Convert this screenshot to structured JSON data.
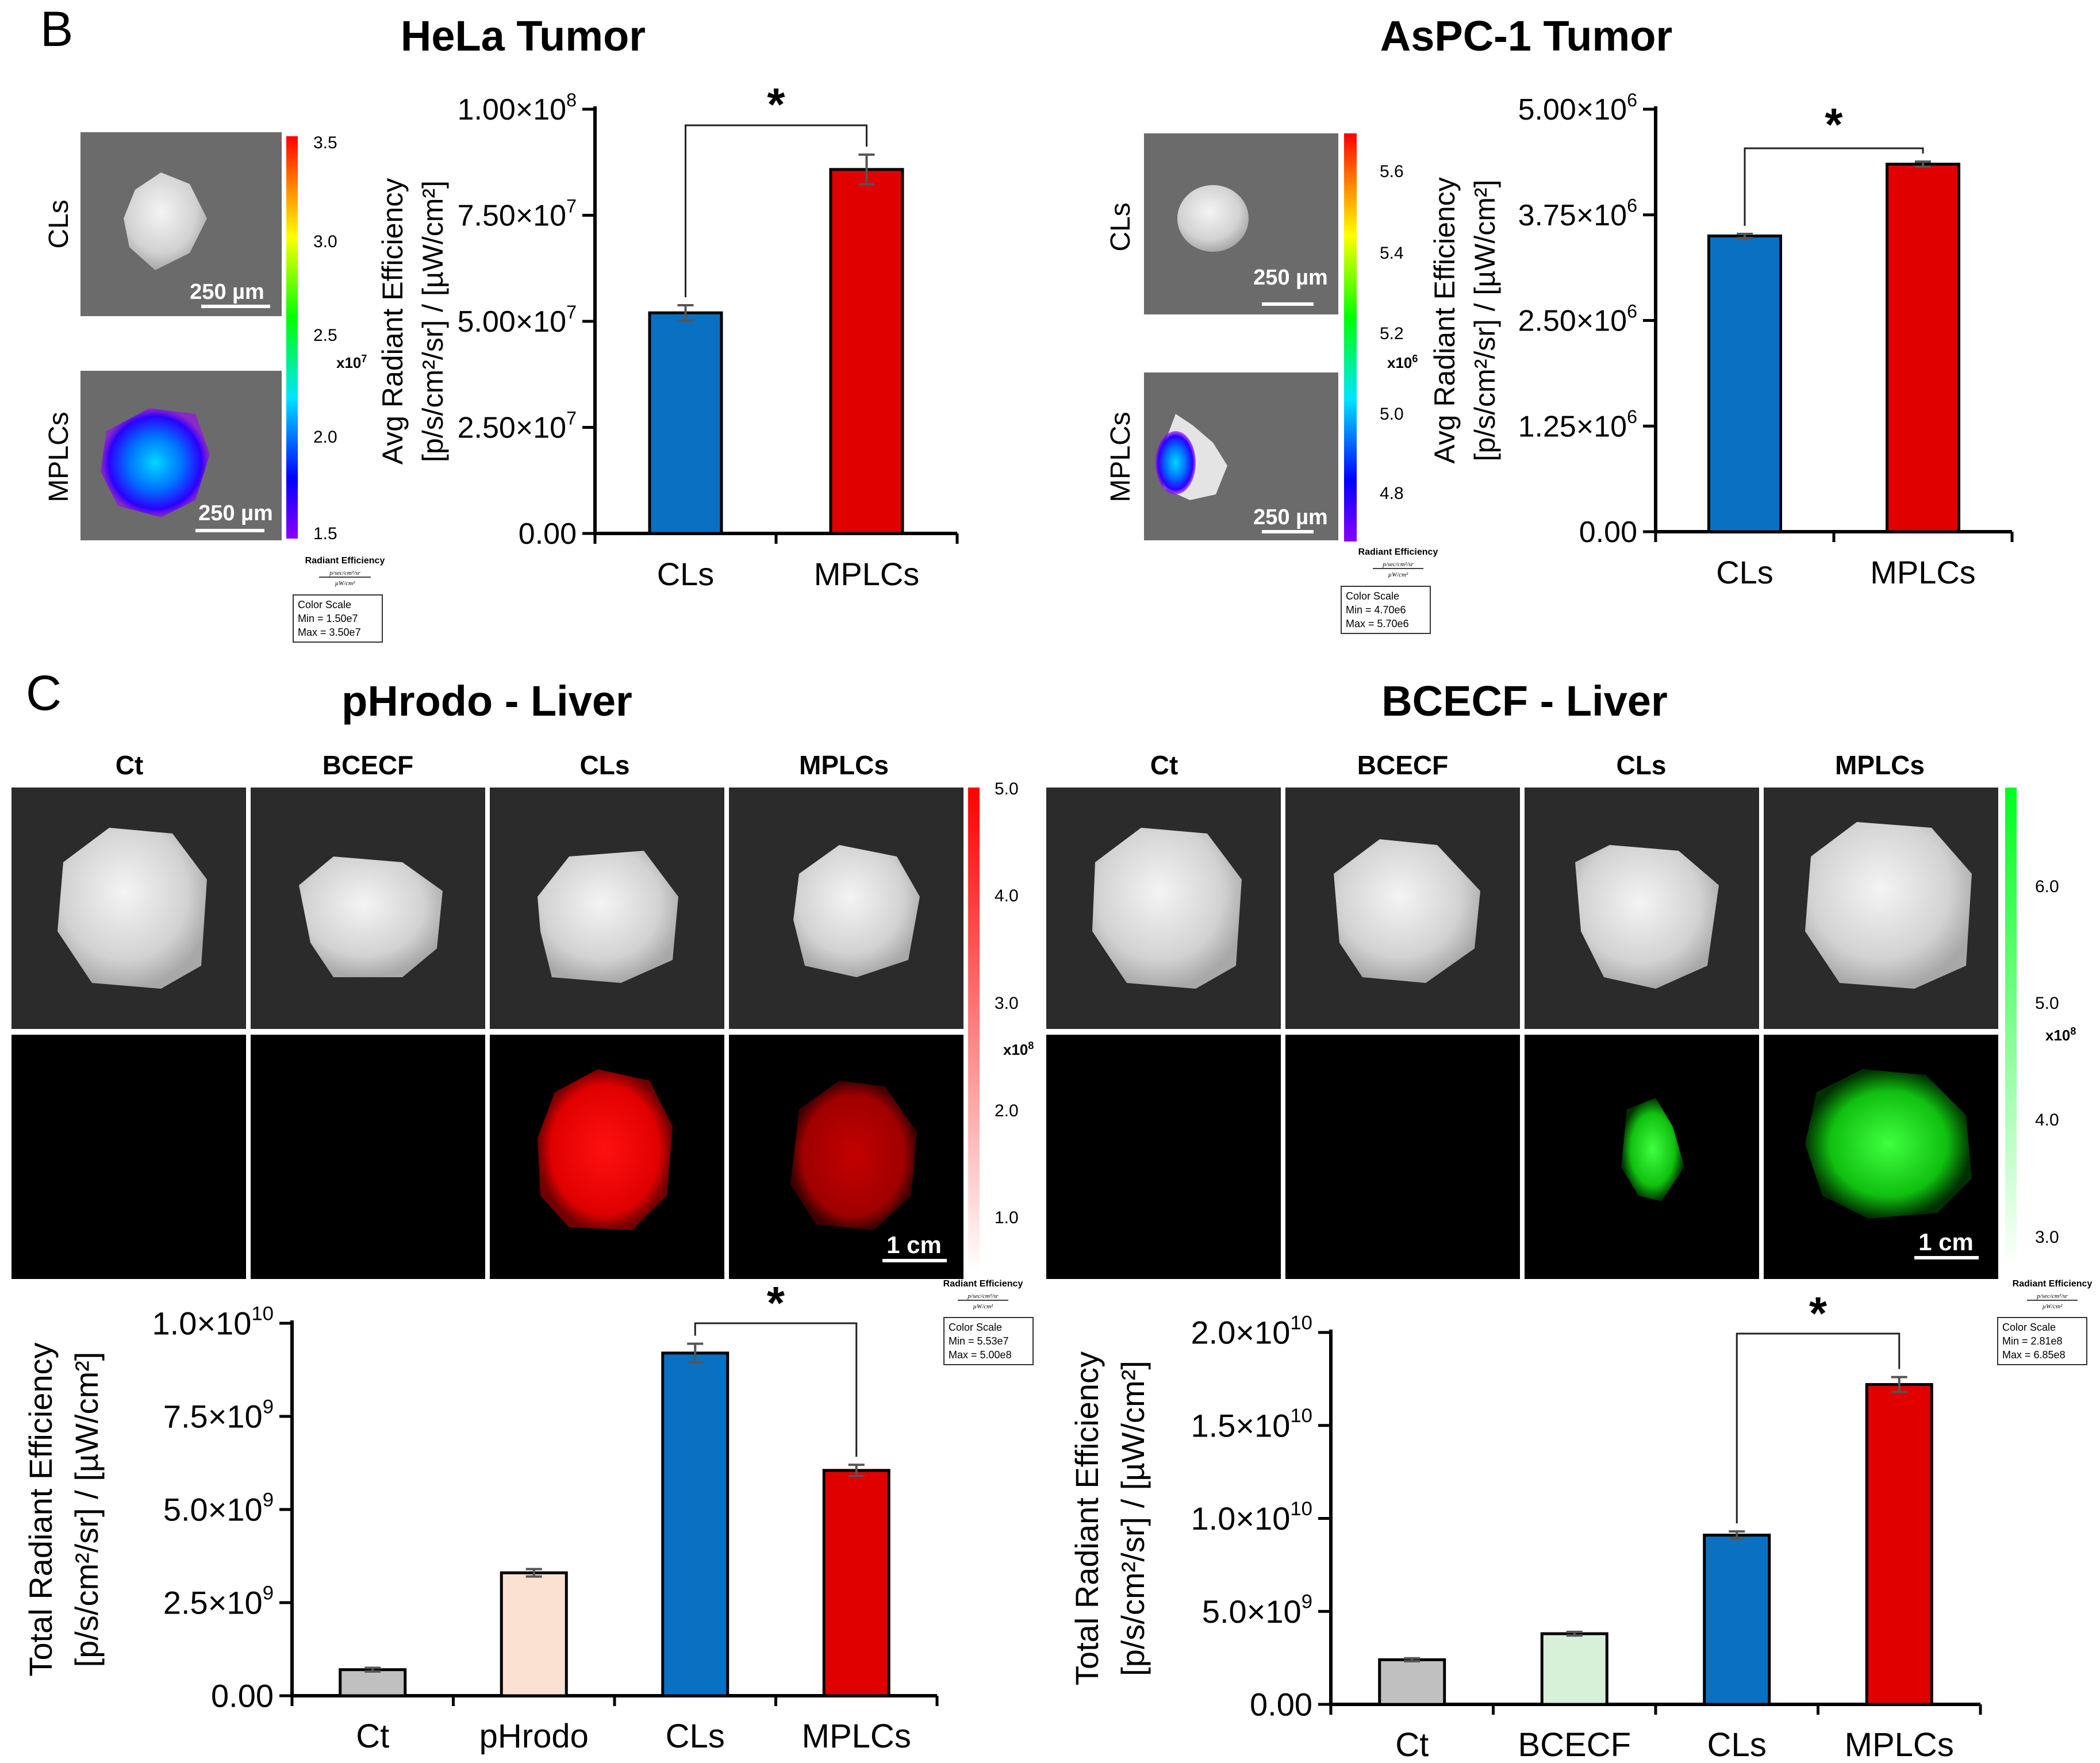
{
  "panels": {
    "B": {
      "letter": "B"
    },
    "C": {
      "letter": "C"
    }
  },
  "images": {
    "hela": {
      "title": "HeLa Tumor",
      "rows": [
        "CLs",
        "MPLCs"
      ],
      "scalebar": "250 µm",
      "colorbar": {
        "ticks": [
          "3.5",
          "3.0",
          "2.5",
          "2.0",
          "1.5"
        ],
        "exponent": "x10",
        "exponent_sup": "7",
        "caption": "Radiant Efficiency",
        "units_num": "p/sec/cm²/sr",
        "units_den": "µW/cm²",
        "box": [
          "Color Scale",
          "Min = 1.50e7",
          "Max = 3.50e7"
        ]
      }
    },
    "aspc": {
      "title": "AsPC-1 Tumor",
      "rows": [
        "CLs",
        "MPLCs"
      ],
      "scalebar": "250 µm",
      "colorbar": {
        "ticks": [
          "5.6",
          "5.4",
          "5.2",
          "5.0",
          "4.8"
        ],
        "exponent": "x10",
        "exponent_sup": "6",
        "caption": "Radiant Efficiency",
        "units_num": "p/sec/cm²/sr",
        "units_den": "µW/cm²",
        "box": [
          "Color Scale",
          "Min = 4.70e6",
          "Max = 5.70e6"
        ]
      }
    },
    "phrodo_liver": {
      "title": "pHrodo - Liver",
      "columns": [
        "Ct",
        "BCECF",
        "CLs",
        "MPLCs"
      ],
      "scalebar": "1 cm",
      "colorbar": {
        "ticks": [
          "5.0",
          "4.0",
          "3.0",
          "2.0",
          "1.0"
        ],
        "exponent": "x10",
        "exponent_sup": "8",
        "caption": "Radiant Efficiency",
        "units_num": "p/sec/cm²/sr",
        "units_den": "µW/cm²",
        "box": [
          "Color Scale",
          "Min = 5.53e7",
          "Max = 5.00e8"
        ]
      }
    },
    "bcecf_liver": {
      "title": "BCECF - Liver",
      "columns": [
        "Ct",
        "BCECF",
        "CLs",
        "MPLCs"
      ],
      "scalebar": "1 cm",
      "colorbar": {
        "ticks": [
          "6.0",
          "5.0",
          "4.0",
          "3.0"
        ],
        "exponent": "x10",
        "exponent_sup": "8",
        "caption": "Radiant Efficiency",
        "units_num": "p/sec/cm²/sr",
        "units_den": "µW/cm²",
        "box": [
          "Color Scale",
          "Min = 2.81e8",
          "Max = 6.85e8"
        ]
      }
    }
  },
  "chart_data": [
    {
      "id": "hela",
      "type": "bar",
      "categories": [
        "CLs",
        "MPLCs"
      ],
      "values": [
        52000000,
        85800000
      ],
      "errors": [
        1800000,
        3500000
      ],
      "colors": [
        "#0a70c2",
        "#e00000"
      ],
      "ylabel_line1": "Avg Radiant Efficiency",
      "ylabel_line2": "[p/s/cm²/sr] / [µW/cm²]",
      "ylim": [
        0,
        100000000
      ],
      "ticks": [
        0,
        25000000,
        50000000,
        75000000,
        100000000
      ],
      "tick_labels": [
        [
          "0.00",
          ""
        ],
        [
          "2.50×10",
          "7"
        ],
        [
          "5.00×10",
          "7"
        ],
        [
          "7.50×10",
          "7"
        ],
        [
          "1.00×10",
          "8"
        ]
      ],
      "significance": {
        "pair": [
          0,
          1
        ],
        "label": "*"
      }
    },
    {
      "id": "aspc",
      "type": "bar",
      "categories": [
        "CLs",
        "MPLCs"
      ],
      "values": [
        3500000,
        4350000
      ],
      "errors": [
        25000,
        30000
      ],
      "colors": [
        "#0a70c2",
        "#e00000"
      ],
      "ylabel_line1": "Avg Radiant Efficiency",
      "ylabel_line2": "[p/s/cm²/sr] / [µW/cm²]",
      "ylim": [
        0,
        5000000
      ],
      "ticks": [
        0,
        1250000,
        2500000,
        3750000,
        5000000
      ],
      "tick_labels": [
        [
          "0.00",
          ""
        ],
        [
          "1.25×10",
          "6"
        ],
        [
          "2.50×10",
          "6"
        ],
        [
          "3.75×10",
          "6"
        ],
        [
          "5.00×10",
          "6"
        ]
      ],
      "significance": {
        "pair": [
          0,
          1
        ],
        "label": "*"
      }
    },
    {
      "id": "phrodo",
      "type": "bar",
      "categories": [
        "Ct",
        "pHrodo",
        "CLs",
        "MPLCs"
      ],
      "values": [
        700000000,
        3300000000,
        9200000000,
        6050000000
      ],
      "errors": [
        50000000,
        100000000,
        250000000,
        150000000
      ],
      "colors": [
        "#c0c0c0",
        "#fbe1d1",
        "#0a70c2",
        "#e00000"
      ],
      "ylabel_line1": "Total Radiant Efficiency",
      "ylabel_line2": "[p/s/cm²/sr] / [µW/cm²]",
      "ylim": [
        0,
        10000000000
      ],
      "ticks": [
        0,
        2500000000,
        5000000000,
        7500000000,
        10000000000
      ],
      "tick_labels": [
        [
          "0.00",
          ""
        ],
        [
          "2.5×10",
          "9"
        ],
        [
          "5.0×10",
          "9"
        ],
        [
          "7.5×10",
          "9"
        ],
        [
          "1.0×10",
          "10"
        ]
      ],
      "significance": {
        "pair": [
          2,
          3
        ],
        "label": "*"
      }
    },
    {
      "id": "bcecf",
      "type": "bar",
      "categories": [
        "Ct",
        "BCECF",
        "CLs",
        "MPLCs"
      ],
      "values": [
        2400000000,
        3800000000,
        9100000000,
        17200000000
      ],
      "errors": [
        80000000,
        100000000,
        200000000,
        400000000
      ],
      "colors": [
        "#c0c0c0",
        "#d7f0d8",
        "#0a70c2",
        "#e00000"
      ],
      "ylabel_line1": "Total Radiant Efficiency",
      "ylabel_line2": "[p/s/cm²/sr] / [µW/cm²]",
      "ylim": [
        0,
        20000000000
      ],
      "ticks": [
        0,
        5000000000,
        10000000000,
        15000000000,
        20000000000
      ],
      "tick_labels": [
        [
          "0.00",
          ""
        ],
        [
          "5.0×10",
          "9"
        ],
        [
          "1.0×10",
          "10"
        ],
        [
          "1.5×10",
          "10"
        ],
        [
          "2.0×10",
          "10"
        ]
      ],
      "significance": {
        "pair": [
          2,
          3
        ],
        "label": "*"
      }
    }
  ]
}
